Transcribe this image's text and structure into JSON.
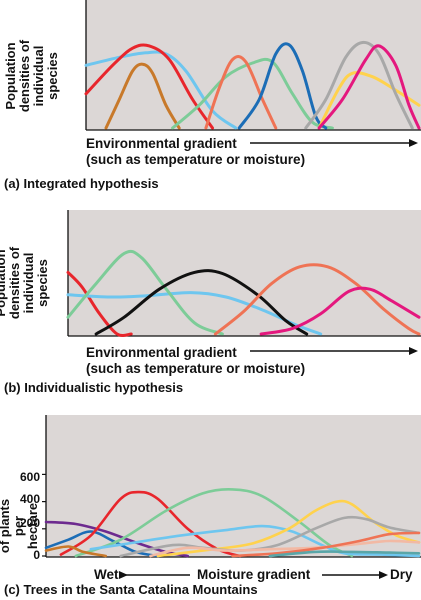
{
  "chart_data": [
    {
      "id": "a",
      "type": "line",
      "ylabel": "Population densities of individual species",
      "xlabel_line1": "Environmental gradient",
      "xlabel_line2": "(such as temperature or moisture)",
      "caption": "(a) Integrated hypothesis",
      "x_range": [
        0,
        100
      ],
      "y_range": [
        0,
        100
      ],
      "series": [
        {
          "color": "#6ec6ef",
          "points": [
            [
              0,
              55
            ],
            [
              10,
              62
            ],
            [
              18,
              66
            ],
            [
              24,
              65
            ],
            [
              30,
              50
            ],
            [
              38,
              15
            ],
            [
              45,
              0
            ]
          ]
        },
        {
          "color": "#e8262c",
          "points": [
            [
              0,
              30
            ],
            [
              8,
              55
            ],
            [
              14,
              70
            ],
            [
              19,
              72
            ],
            [
              25,
              60
            ],
            [
              32,
              25
            ],
            [
              38,
              0
            ]
          ]
        },
        {
          "color": "#c8792a",
          "points": [
            [
              6,
              0
            ],
            [
              10,
              25
            ],
            [
              14,
              50
            ],
            [
              17,
              56
            ],
            [
              20,
              48
            ],
            [
              24,
              20
            ],
            [
              28,
              0
            ]
          ]
        },
        {
          "color": "#7dcc98",
          "points": [
            [
              26,
              0
            ],
            [
              34,
              20
            ],
            [
              42,
              45
            ],
            [
              50,
              57
            ],
            [
              56,
              58
            ],
            [
              62,
              30
            ],
            [
              68,
              5
            ],
            [
              74,
              0
            ]
          ]
        },
        {
          "color": "#ef7355",
          "points": [
            [
              36,
              0
            ],
            [
              40,
              35
            ],
            [
              44,
              60
            ],
            [
              48,
              58
            ],
            [
              53,
              25
            ],
            [
              57,
              0
            ]
          ]
        },
        {
          "color": "#1c6db6",
          "points": [
            [
              46,
              0
            ],
            [
              52,
              25
            ],
            [
              57,
              65
            ],
            [
              61,
              73
            ],
            [
              65,
              50
            ],
            [
              69,
              10
            ],
            [
              72,
              0
            ]
          ]
        },
        {
          "color": "#ffd24d",
          "points": [
            [
              70,
              0
            ],
            [
              76,
              35
            ],
            [
              80,
              48
            ],
            [
              86,
              45
            ],
            [
              92,
              35
            ],
            [
              100,
              20
            ]
          ]
        },
        {
          "color": "#a8a8a8",
          "points": [
            [
              66,
              0
            ],
            [
              72,
              25
            ],
            [
              78,
              62
            ],
            [
              83,
              75
            ],
            [
              88,
              65
            ],
            [
              93,
              30
            ],
            [
              98,
              0
            ]
          ]
        },
        {
          "color": "#e4187e",
          "points": [
            [
              70,
              0
            ],
            [
              77,
              25
            ],
            [
              84,
              60
            ],
            [
              88,
              72
            ],
            [
              93,
              55
            ],
            [
              97,
              20
            ],
            [
              100,
              0
            ]
          ]
        }
      ]
    },
    {
      "id": "b",
      "type": "line",
      "ylabel": "Population densities of individual species",
      "xlabel_line1": "Environmental gradient",
      "xlabel_line2": "(such as temperature or moisture)",
      "caption": "(b) Individualistic hypothesis",
      "x_range": [
        0,
        100
      ],
      "y_range": [
        0,
        100
      ],
      "series": [
        {
          "color": "#e8262c",
          "points": [
            [
              0,
              55
            ],
            [
              4,
              42
            ],
            [
              9,
              18
            ],
            [
              14,
              0
            ],
            [
              18,
              0
            ]
          ]
        },
        {
          "color": "#6ec6ef",
          "points": [
            [
              0,
              35
            ],
            [
              12,
              33
            ],
            [
              22,
              34
            ],
            [
              35,
              37
            ],
            [
              45,
              33
            ],
            [
              55,
              22
            ],
            [
              65,
              8
            ],
            [
              72,
              0
            ]
          ]
        },
        {
          "color": "#7dcc98",
          "points": [
            [
              0,
              15
            ],
            [
              8,
              45
            ],
            [
              16,
              72
            ],
            [
              21,
              68
            ],
            [
              28,
              40
            ],
            [
              36,
              10
            ],
            [
              44,
              0
            ]
          ]
        },
        {
          "color": "#111111",
          "points": [
            [
              8,
              0
            ],
            [
              16,
              15
            ],
            [
              26,
              40
            ],
            [
              36,
              55
            ],
            [
              44,
              54
            ],
            [
              54,
              35
            ],
            [
              62,
              12
            ],
            [
              68,
              0
            ]
          ]
        },
        {
          "color": "#ef7355",
          "points": [
            [
              42,
              0
            ],
            [
              50,
              20
            ],
            [
              58,
              45
            ],
            [
              66,
              60
            ],
            [
              74,
              60
            ],
            [
              82,
              45
            ],
            [
              90,
              22
            ],
            [
              97,
              5
            ],
            [
              100,
              0
            ]
          ]
        },
        {
          "color": "#e4187e",
          "points": [
            [
              55,
              0
            ],
            [
              64,
              5
            ],
            [
              72,
              18
            ],
            [
              80,
              38
            ],
            [
              86,
              40
            ],
            [
              92,
              30
            ],
            [
              100,
              15
            ]
          ]
        }
      ]
    },
    {
      "id": "c",
      "type": "line",
      "ylabel": "Number of plants per hectare",
      "yticks": [
        "600",
        "400",
        "200",
        "0"
      ],
      "ytick_values": [
        600,
        400,
        200,
        0
      ],
      "x_left": "Wet",
      "x_mid": "Moisture gradient",
      "x_right": "Dry",
      "caption": "(c) Trees in the Santa Catalina Mountains",
      "x_range": [
        0,
        100
      ],
      "y_range": [
        0,
        1000
      ],
      "series": [
        {
          "color": "#6d2a8f",
          "points": [
            [
              0,
              250
            ],
            [
              8,
              235
            ],
            [
              16,
              180
            ],
            [
              24,
              100
            ],
            [
              32,
              30
            ],
            [
              38,
              0
            ]
          ]
        },
        {
          "color": "#1c6db6",
          "points": [
            [
              0,
              60
            ],
            [
              6,
              120
            ],
            [
              12,
              180
            ],
            [
              18,
              110
            ],
            [
              24,
              30
            ],
            [
              30,
              0
            ]
          ]
        },
        {
          "color": "#e8262c",
          "points": [
            [
              4,
              10
            ],
            [
              12,
              150
            ],
            [
              20,
              420
            ],
            [
              25,
              470
            ],
            [
              30,
              420
            ],
            [
              38,
              200
            ],
            [
              46,
              50
            ],
            [
              52,
              0
            ]
          ]
        },
        {
          "color": "#7dcc98",
          "points": [
            [
              8,
              0
            ],
            [
              20,
              120
            ],
            [
              32,
              330
            ],
            [
              42,
              460
            ],
            [
              50,
              490
            ],
            [
              58,
              440
            ],
            [
              68,
              250
            ],
            [
              76,
              80
            ],
            [
              82,
              0
            ]
          ]
        },
        {
          "color": "#6ec6ef",
          "points": [
            [
              12,
              50
            ],
            [
              24,
              100
            ],
            [
              36,
              150
            ],
            [
              48,
              190
            ],
            [
              58,
              220
            ],
            [
              66,
              180
            ],
            [
              74,
              80
            ],
            [
              80,
              20
            ],
            [
              90,
              10
            ],
            [
              100,
              0
            ]
          ]
        },
        {
          "color": "#ffd24d",
          "points": [
            [
              30,
              0
            ],
            [
              42,
              40
            ],
            [
              55,
              90
            ],
            [
              65,
              200
            ],
            [
              72,
              330
            ],
            [
              78,
              400
            ],
            [
              82,
              380
            ],
            [
              88,
              250
            ],
            [
              94,
              150
            ],
            [
              100,
              100
            ]
          ]
        },
        {
          "color": "#a8a8a8",
          "points": [
            [
              20,
              0
            ],
            [
              34,
              80
            ],
            [
              42,
              60
            ],
            [
              52,
              40
            ],
            [
              62,
              80
            ],
            [
              72,
              200
            ],
            [
              80,
              280
            ],
            [
              86,
              270
            ],
            [
              92,
              210
            ],
            [
              100,
              170
            ]
          ]
        },
        {
          "color": "#f2b9a4",
          "points": [
            [
              28,
              0
            ],
            [
              38,
              60
            ],
            [
              48,
              40
            ],
            [
              60,
              50
            ],
            [
              72,
              60
            ],
            [
              84,
              90
            ],
            [
              92,
              110
            ],
            [
              100,
              100
            ]
          ]
        },
        {
          "color": "#c8792a",
          "points": [
            [
              0,
              40
            ],
            [
              6,
              70
            ],
            [
              10,
              30
            ],
            [
              16,
              0
            ]
          ]
        },
        {
          "color": "#ef7355",
          "points": [
            [
              50,
              0
            ],
            [
              62,
              20
            ],
            [
              74,
              60
            ],
            [
              84,
              110
            ],
            [
              92,
              160
            ],
            [
              100,
              170
            ]
          ]
        },
        {
          "color": "#5aa6a8",
          "points": [
            [
              60,
              0
            ],
            [
              72,
              30
            ],
            [
              82,
              30
            ],
            [
              92,
              25
            ],
            [
              100,
              20
            ]
          ]
        }
      ]
    }
  ]
}
